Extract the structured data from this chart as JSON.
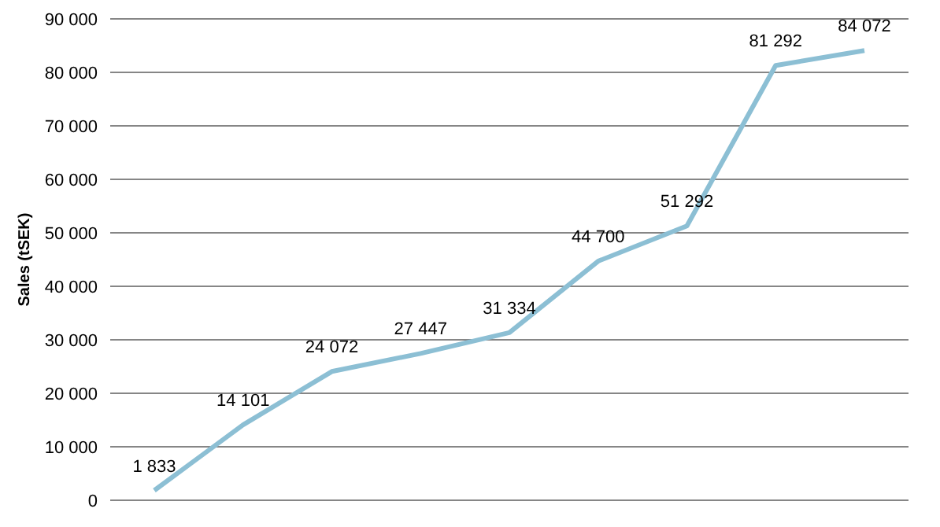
{
  "chart_data": {
    "type": "line",
    "ylabel": "Sales (tSEK)",
    "categories": [
      null,
      null,
      null,
      null,
      null,
      null,
      null,
      null,
      null
    ],
    "series": [
      {
        "color": "#8cbfd4",
        "values": [
          1833,
          14101,
          24072,
          27447,
          31334,
          44700,
          51292,
          81292,
          84072
        ],
        "value_labels": [
          "1 833",
          "14 101",
          "24 072",
          "27 447",
          "31 334",
          "44 700",
          "51 292",
          "81 292",
          "84 072"
        ]
      }
    ],
    "ylim": [
      0,
      90000
    ],
    "yticks": [
      {
        "value": 0,
        "label": "0"
      },
      {
        "value": 10000,
        "label": "10 000"
      },
      {
        "value": 20000,
        "label": "20 000"
      },
      {
        "value": 30000,
        "label": "30 000"
      },
      {
        "value": 40000,
        "label": "40 000"
      },
      {
        "value": 50000,
        "label": "50 000"
      },
      {
        "value": 60000,
        "label": "60 000"
      },
      {
        "value": 70000,
        "label": "70 000"
      },
      {
        "value": 80000,
        "label": "80 000"
      },
      {
        "value": 90000,
        "label": "90 000"
      }
    ],
    "grid": "y",
    "marker": "none",
    "line_style": "solid",
    "tick_labels": "y",
    "legend": false
  }
}
